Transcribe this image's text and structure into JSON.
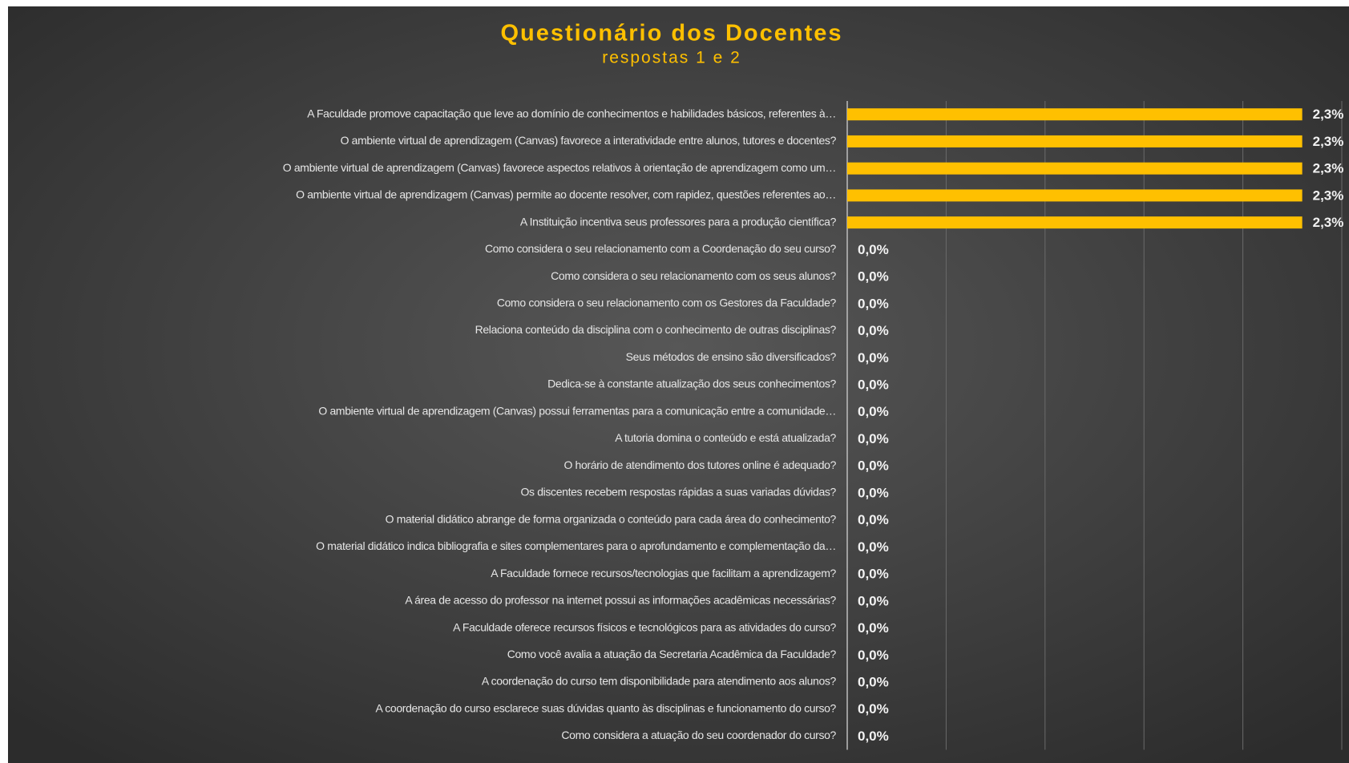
{
  "chart_data": {
    "type": "barh",
    "title": "Questionário dos Docentes",
    "subtitle": "respostas 1 e 2",
    "categories": [
      "A Faculdade promove capacitação que leve ao domínio de conhecimentos e habilidades básicos, referentes à…",
      "O ambiente virtual de aprendizagem (Canvas) favorece a interatividade entre alunos, tutores e docentes?",
      "O ambiente virtual de aprendizagem (Canvas) favorece aspectos relativos à orientação de aprendizagem como um…",
      "O ambiente virtual de aprendizagem (Canvas) permite ao docente resolver, com rapidez, questões referentes ao…",
      "A Instituição incentiva seus professores para a produção científica?",
      "Como considera o seu relacionamento com a Coordenação do seu curso?",
      "Como considera o seu relacionamento com os seus alunos?",
      "Como considera o seu relacionamento com os Gestores da Faculdade?",
      "Relaciona conteúdo da disciplina com o conhecimento de outras disciplinas?",
      "Seus métodos de ensino são diversificados?",
      "Dedica-se à constante atualização dos seus conhecimentos?",
      "O ambiente virtual de aprendizagem (Canvas) possui ferramentas para a comunicação entre a comunidade…",
      "A tutoria domina o conteúdo e está atualizada?",
      "O horário de atendimento dos tutores online é adequado?",
      "Os discentes recebem respostas rápidas a suas variadas dúvidas?",
      "O material didático abrange de forma organizada o conteúdo para cada área do conhecimento?",
      "O material didático indica bibliografia e sites complementares para o aprofundamento e complementação da…",
      "A Faculdade fornece recursos/tecnologias que facilitam a aprendizagem?",
      "A área de acesso do professor na internet possui as informações acadêmicas necessárias?",
      "A Faculdade oferece recursos físicos e tecnológicos para as atividades do curso?",
      "Como você avalia a atuação da Secretaria Acadêmica da Faculdade?",
      "A coordenação do curso tem disponibilidade para atendimento aos alunos?",
      "A coordenação do curso esclarece suas dúvidas quanto às disciplinas e funcionamento do curso?",
      "Como considera a atuação do seu coordenador do curso?"
    ],
    "values": [
      2.3,
      2.3,
      2.3,
      2.3,
      2.3,
      0,
      0,
      0,
      0,
      0,
      0,
      0,
      0,
      0,
      0,
      0,
      0,
      0,
      0,
      0,
      0,
      0,
      0,
      0
    ],
    "value_labels": [
      "2,3%",
      "2,3%",
      "2,3%",
      "2,3%",
      "2,3%",
      "0,0%",
      "0,0%",
      "0,0%",
      "0,0%",
      "0,0%",
      "0,0%",
      "0,0%",
      "0,0%",
      "0,0%",
      "0,0%",
      "0,0%",
      "0,0%",
      "0,0%",
      "0,0%",
      "0,0%",
      "0,0%",
      "0,0%",
      "0,0%",
      "0,0%"
    ],
    "color": "#ffc000",
    "xlim": [
      0,
      2.5
    ],
    "xticks": [
      0,
      0.5,
      1,
      1.5,
      2,
      2.5
    ],
    "grid": true
  }
}
